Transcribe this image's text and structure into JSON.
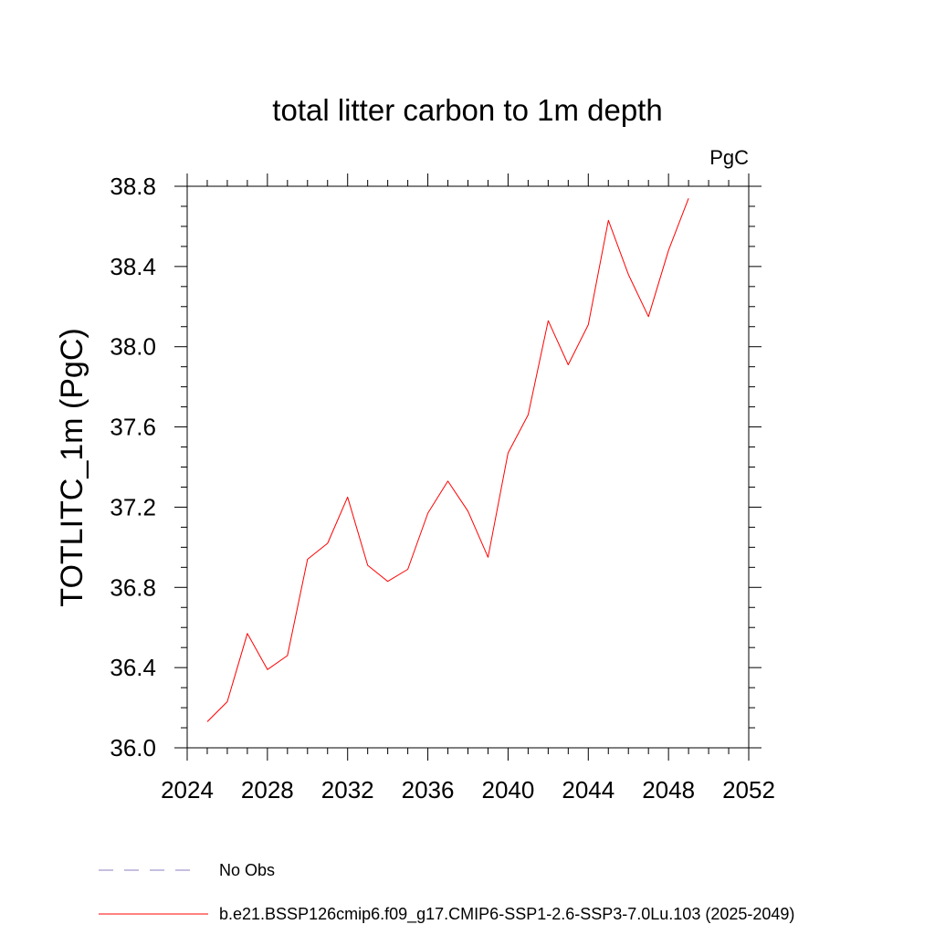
{
  "chart_data": {
    "type": "line",
    "title": "total litter carbon to 1m depth",
    "units": "PgC",
    "xlabel": "",
    "ylabel": "TOTLITC_1m  (PgC)",
    "xlim": [
      2024,
      2052
    ],
    "ylim": [
      36.0,
      38.8
    ],
    "xticks": [
      "2024",
      "2028",
      "2032",
      "2036",
      "2040",
      "2044",
      "2048",
      "2052"
    ],
    "yticks": [
      "36.0",
      "36.4",
      "36.8",
      "37.2",
      "37.6",
      "38.0",
      "38.4",
      "38.8"
    ],
    "grid": false,
    "legend_position": "bottom-left",
    "series": [
      {
        "name": "b.e21.BSSP126cmip6.f09_g17.CMIP6-SSP1-2.6-SSP3-7.0Lu.103 (2025-2049)",
        "color": "#ff0000",
        "style": "solid",
        "x": [
          2025,
          2026,
          2027,
          2028,
          2029,
          2030,
          2031,
          2032,
          2033,
          2034,
          2035,
          2036,
          2037,
          2038,
          2039,
          2040,
          2041,
          2042,
          2043,
          2044,
          2045,
          2046,
          2047,
          2048,
          2049
        ],
        "y": [
          36.13,
          36.23,
          36.57,
          36.39,
          36.46,
          36.94,
          37.02,
          37.25,
          36.91,
          36.83,
          36.89,
          37.17,
          37.33,
          37.18,
          36.95,
          37.47,
          37.66,
          38.13,
          37.91,
          38.11,
          38.63,
          38.36,
          38.15,
          38.48,
          38.74
        ]
      }
    ],
    "legend": [
      {
        "label": "No Obs",
        "color": "#8e7fc0",
        "style": "dashed"
      },
      {
        "label": "b.e21.BSSP126cmip6.f09_g17.CMIP6-SSP1-2.6-SSP3-7.0Lu.103 (2025-2049)",
        "color": "#ff0000",
        "style": "solid"
      }
    ]
  }
}
